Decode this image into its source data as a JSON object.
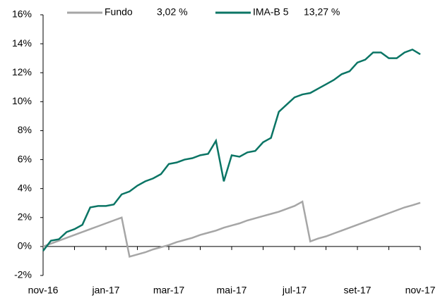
{
  "chart_data": {
    "type": "line",
    "x": [
      "nov-16",
      null,
      null,
      null,
      null,
      null,
      null,
      null,
      "jan-17",
      null,
      null,
      null,
      null,
      null,
      null,
      null,
      "mar-17",
      null,
      null,
      null,
      null,
      null,
      null,
      null,
      "mai-17",
      null,
      null,
      null,
      null,
      null,
      null,
      null,
      "jul-17",
      null,
      null,
      null,
      null,
      null,
      null,
      null,
      "set-17",
      null,
      null,
      null,
      null,
      null,
      null,
      null,
      "nov-17"
    ],
    "series": [
      {
        "name": "Fundo",
        "legend_value": "3,02 %",
        "color": "#a6a6a6",
        "values": [
          0,
          0.2,
          0.4,
          0.6,
          0.8,
          1.0,
          1.2,
          1.4,
          1.6,
          1.8,
          2.0,
          -0.7,
          -0.55,
          -0.4,
          -0.2,
          -0.05,
          0.1,
          0.3,
          0.45,
          0.6,
          0.8,
          0.95,
          1.1,
          1.3,
          1.45,
          1.6,
          1.8,
          1.95,
          2.1,
          2.25,
          2.4,
          2.6,
          2.8,
          3.1,
          0.35,
          0.55,
          0.7,
          0.9,
          1.1,
          1.3,
          1.5,
          1.7,
          1.9,
          2.1,
          2.3,
          2.5,
          2.7,
          2.85,
          3.02
        ]
      },
      {
        "name": "IMA-B 5",
        "legend_value": "13,27 %",
        "color": "#0b7565",
        "values": [
          -0.3,
          0.4,
          0.5,
          1.0,
          1.2,
          1.5,
          2.7,
          2.8,
          2.8,
          2.9,
          3.6,
          3.8,
          4.2,
          4.5,
          4.7,
          5.0,
          5.7,
          5.8,
          6.0,
          6.1,
          6.3,
          6.4,
          7.3,
          4.5,
          6.3,
          6.2,
          6.5,
          6.6,
          7.2,
          7.5,
          9.3,
          9.8,
          10.3,
          10.5,
          10.6,
          10.9,
          11.2,
          11.5,
          11.9,
          12.1,
          12.7,
          12.9,
          13.4,
          13.4,
          13.0,
          13.0,
          13.4,
          13.6,
          13.27
        ]
      }
    ],
    "ylim": [
      -2,
      16
    ],
    "yticks": [
      {
        "value": -2,
        "label": "-2%"
      },
      {
        "value": 0,
        "label": "0%"
      },
      {
        "value": 2,
        "label": "2%"
      },
      {
        "value": 4,
        "label": "4%"
      },
      {
        "value": 6,
        "label": "6%"
      },
      {
        "value": 8,
        "label": "8%"
      },
      {
        "value": 10,
        "label": "10%"
      },
      {
        "value": 12,
        "label": "12%"
      },
      {
        "value": 14,
        "label": "14%"
      },
      {
        "value": 16,
        "label": "16%"
      }
    ],
    "grid": false
  }
}
